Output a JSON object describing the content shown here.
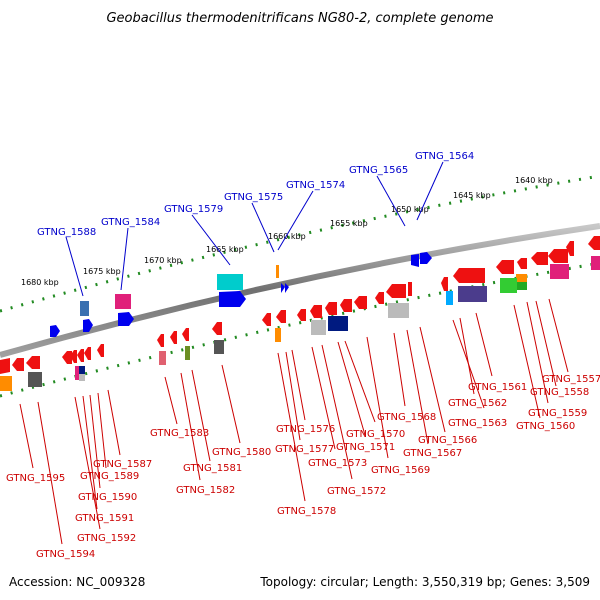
{
  "title": "Geobacillus thermodenitrificans NG80-2, complete genome",
  "footer": {
    "accession": "Accession: NC_009328",
    "summary": "Topology: circular; Length: 3,550,319 bp; Genes: 3,509"
  },
  "ticks": [
    "1640 kbp",
    "1645 kbp",
    "1650 kbp",
    "1655 kbp",
    "1660 kbp",
    "1665 kbp",
    "1670 kbp",
    "1675 kbp",
    "1680 kbp"
  ],
  "colors": {
    "forward_label": "#0000cc",
    "reverse_label": "#cc0000",
    "backbone": "#808080",
    "tick_marks": "#228b22"
  },
  "labels_top": [
    "GTNG_1564",
    "GTNG_1565",
    "GTNG_1574",
    "GTNG_1575",
    "GTNG_1579",
    "GTNG_1584",
    "GTNG_1588"
  ],
  "labels_bottom": [
    "GTNG_1557",
    "GTNG_1558",
    "GTNG_1559",
    "GTNG_1560",
    "GTNG_1561",
    "GTNG_1562",
    "GTNG_1563",
    "GTNG_1566",
    "GTNG_1567",
    "GTNG_1568",
    "GTNG_1569",
    "GTNG_1570",
    "GTNG_1571",
    "GTNG_1572",
    "GTNG_1573",
    "GTNG_1576",
    "GTNG_1577",
    "GTNG_1578",
    "GTNG_1580",
    "GTNG_1581",
    "GTNG_1582",
    "GTNG_1583",
    "GTNG_1587",
    "GTNG_1589",
    "GTNG_1590",
    "GTNG_1591",
    "GTNG_1592",
    "GTNG_1594",
    "GTNG_1595"
  ]
}
